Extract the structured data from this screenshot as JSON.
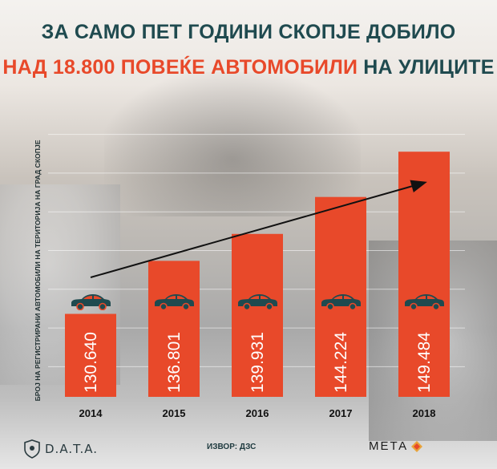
{
  "title": {
    "line1": "ЗА САМО ПЕТ ГОДИНИ СКОПЈЕ ДОБИЛО",
    "line2_highlight": "НАД 18.800 ПОВЕЌЕ АВТОМОБИЛИ",
    "line2_rest": " НА УЛИЦИТЕ"
  },
  "chart_data": {
    "type": "bar",
    "categories": [
      "2014",
      "2015",
      "2016",
      "2017",
      "2018"
    ],
    "values": [
      130640,
      136801,
      139931,
      144224,
      149484
    ],
    "value_labels": [
      "130.640",
      "136.801",
      "139.931",
      "144.224",
      "149.484"
    ],
    "ylabel": "БРОЈ НА РЕГИСТРИРАНИ АВТОМОБИЛИ НА ТЕРИТОРИЈА НА ГРАД СКОПЈЕ",
    "ylim": [
      121000,
      155000
    ],
    "grid": true,
    "trend_arrow": true,
    "bar_color": "#e8492a",
    "icon": "car-icon"
  },
  "footer": {
    "left_logo": "D.A.T.A.",
    "source": "ИЗВОР: ДЗС",
    "right_logo": "МЕТА"
  },
  "colors": {
    "accent": "#e8492a",
    "title": "#1f4a4f"
  }
}
